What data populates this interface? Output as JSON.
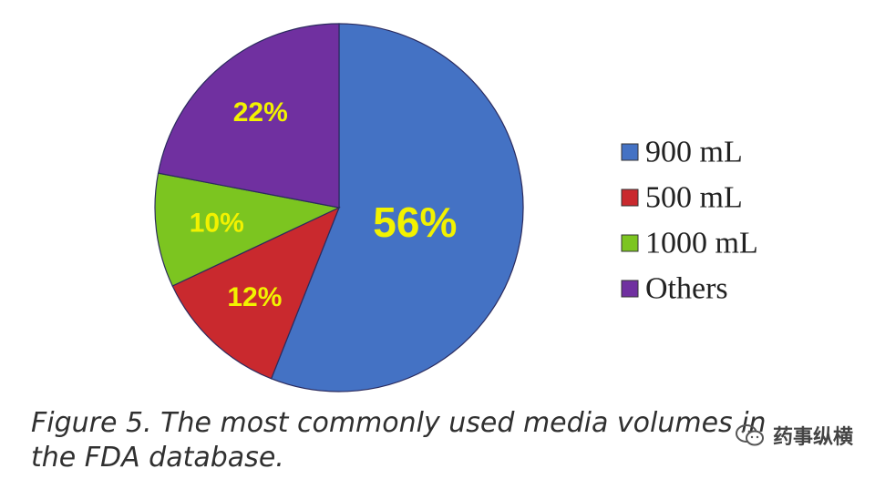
{
  "chart_data": {
    "type": "pie",
    "categories": [
      "900 mL",
      "500 mL",
      "1000 mL",
      "Others"
    ],
    "values": [
      56,
      12,
      10,
      22
    ],
    "value_labels": [
      "56%",
      "12%",
      "10%",
      "22%"
    ],
    "colors": [
      "#4472c4",
      "#c9292e",
      "#7cc520",
      "#7030a0"
    ],
    "label_color": "#f2f200",
    "start_angle_deg": 0,
    "direction": "clockwise",
    "legend_position": "right"
  },
  "caption": "Figure 5. The most commonly used media volumes in the FDA database.",
  "watermark": {
    "text": "药事纵横",
    "icon": "wechat-icon"
  }
}
